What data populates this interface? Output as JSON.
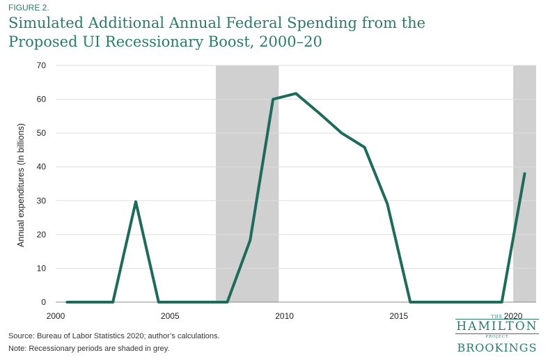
{
  "figure_label": "FIGURE 2.",
  "title": "Simulated Additional Annual Federal Spending from the Proposed UI Recessionary Boost, 2000–20",
  "notes": {
    "source": "Source: Bureau of Labor Statistics 2020; author’s calculations.",
    "note": "Note: Recessionary periods are shaded in grey."
  },
  "logo": {
    "the": "THE",
    "hamilton": "HAMILTON",
    "project": "PROJECT",
    "brookings": "BROOKINGS"
  },
  "colors": {
    "line": "#1e6b5a",
    "shade": "#d1d0d0",
    "grid": "#dddddd",
    "title": "#2b7a6a"
  },
  "chart_data": {
    "type": "line",
    "title": "Simulated Additional Annual Federal Spending from the Proposed UI Recessionary Boost, 2000–20",
    "xlabel": "",
    "ylabel": "Annual expenditures (In billions)",
    "xlim": [
      2000,
      2021
    ],
    "ylim": [
      0,
      70
    ],
    "xticks": [
      2000,
      2005,
      2010,
      2015,
      2020
    ],
    "yticks": [
      0,
      10,
      20,
      30,
      40,
      50,
      60,
      70
    ],
    "grid": "horizontal",
    "recession_shading": [
      [
        2007,
        2009.75
      ],
      [
        2020,
        2021
      ]
    ],
    "series": [
      {
        "x": [
          2000,
          2001,
          2002,
          2003,
          2004,
          2005,
          2006,
          2007,
          2008,
          2009,
          2010,
          2011,
          2012,
          2013,
          2014,
          2015,
          2016,
          2017,
          2018,
          2019,
          2020
        ],
        "values": [
          0,
          0,
          0,
          29.7,
          0,
          0,
          0,
          0,
          18.3,
          60,
          61.7,
          56,
          50,
          45.8,
          29,
          0,
          0,
          0,
          0,
          0,
          38
        ]
      }
    ]
  }
}
